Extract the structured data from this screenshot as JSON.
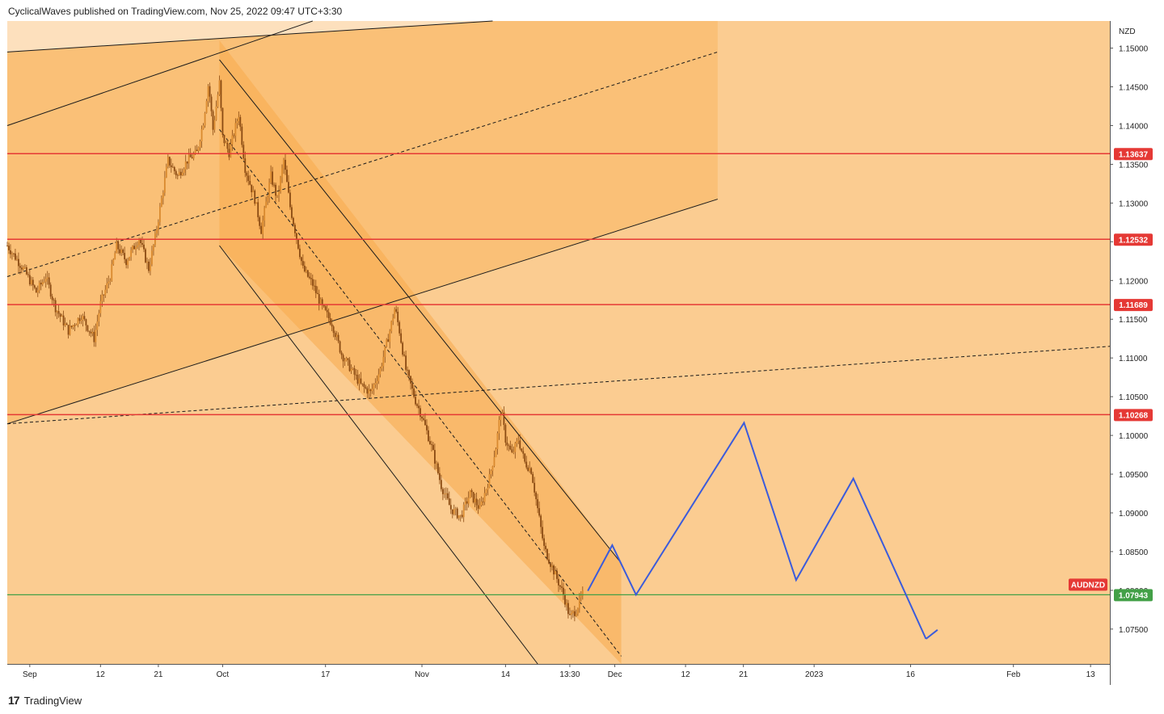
{
  "header": {
    "published_line": "CyclicalWaves published on TradingView.com, Nov 25, 2022 09:47 UTC+3:30"
  },
  "footer": {
    "logo_glyph": "17",
    "brand": "TradingView"
  },
  "colors": {
    "background_fill": "#fbcc91",
    "channel_fill": "#f9b663",
    "horizontal_level": "#e53935",
    "current_price": "#43a047",
    "projection": "#3b5bdb",
    "candle": "#8a4a12"
  },
  "chart_data": {
    "type": "line",
    "symbol": "AUDNZD",
    "currency": "NZD",
    "y_ticks": [
      "1.15000",
      "1.14500",
      "1.14000",
      "1.13500",
      "1.13000",
      "1.12500",
      "1.12000",
      "1.11500",
      "1.11000",
      "1.10500",
      "1.10000",
      "1.09500",
      "1.09000",
      "1.08500",
      "1.08000",
      "1.07500"
    ],
    "y_tick_values": [
      1.15,
      1.145,
      1.14,
      1.135,
      1.13,
      1.125,
      1.12,
      1.115,
      1.11,
      1.105,
      1.1,
      1.095,
      1.09,
      1.085,
      1.08,
      1.075
    ],
    "ylim": [
      1.0705,
      1.1535
    ],
    "x_ticks": [
      {
        "label": "Sep",
        "day": 0
      },
      {
        "label": "12",
        "day": 11
      },
      {
        "label": "21",
        "day": 20
      },
      {
        "label": "Oct",
        "day": 30
      },
      {
        "label": "17",
        "day": 46
      },
      {
        "label": "Nov",
        "day": 61
      },
      {
        "label": "14",
        "day": 74
      },
      {
        "label": "13:30",
        "day": 84
      },
      {
        "label": "Dec",
        "day": 91
      },
      {
        "label": "12",
        "day": 102
      },
      {
        "label": "21",
        "day": 111
      },
      {
        "label": "2023",
        "day": 122
      },
      {
        "label": "16",
        "day": 137
      },
      {
        "label": "Feb",
        "day": 153
      },
      {
        "label": "13",
        "day": 165
      }
    ],
    "x_day_range": [
      -3.5,
      168
    ],
    "horizontal_levels": [
      {
        "value": 1.13637,
        "label": "1.13637"
      },
      {
        "value": 1.12532,
        "label": "1.12532"
      },
      {
        "value": 1.11689,
        "label": "1.11689"
      },
      {
        "value": 1.10268,
        "label": "1.10268"
      }
    ],
    "current_price": {
      "value": 1.07943,
      "label": "1.07943",
      "symbol_label": "AUDNZD"
    },
    "price_path": [
      {
        "day": -3.5,
        "price": 1.1245
      },
      {
        "day": -1,
        "price": 1.1215
      },
      {
        "day": 1,
        "price": 1.1185
      },
      {
        "day": 2.5,
        "price": 1.1205
      },
      {
        "day": 4,
        "price": 1.1165
      },
      {
        "day": 6,
        "price": 1.1135
      },
      {
        "day": 8,
        "price": 1.1155
      },
      {
        "day": 10,
        "price": 1.1125
      },
      {
        "day": 11,
        "price": 1.117
      },
      {
        "day": 12.5,
        "price": 1.1205
      },
      {
        "day": 13.5,
        "price": 1.1245
      },
      {
        "day": 15,
        "price": 1.1225
      },
      {
        "day": 17,
        "price": 1.1255
      },
      {
        "day": 18.5,
        "price": 1.1215
      },
      {
        "day": 19.5,
        "price": 1.1255
      },
      {
        "day": 20.5,
        "price": 1.1305
      },
      {
        "day": 21.5,
        "price": 1.1355
      },
      {
        "day": 23,
        "price": 1.1335
      },
      {
        "day": 24.5,
        "price": 1.1355
      },
      {
        "day": 26,
        "price": 1.1365
      },
      {
        "day": 27,
        "price": 1.1405
      },
      {
        "day": 27.8,
        "price": 1.1455
      },
      {
        "day": 28.5,
        "price": 1.1395
      },
      {
        "day": 29.5,
        "price": 1.1455
      },
      {
        "day": 30,
        "price": 1.1385
      },
      {
        "day": 31,
        "price": 1.1365
      },
      {
        "day": 32.5,
        "price": 1.1415
      },
      {
        "day": 33.5,
        "price": 1.1345
      },
      {
        "day": 35,
        "price": 1.1305
      },
      {
        "day": 36,
        "price": 1.1265
      },
      {
        "day": 37.5,
        "price": 1.1335
      },
      {
        "day": 38.5,
        "price": 1.1305
      },
      {
        "day": 39.5,
        "price": 1.1355
      },
      {
        "day": 40.5,
        "price": 1.1295
      },
      {
        "day": 41.5,
        "price": 1.1255
      },
      {
        "day": 42.5,
        "price": 1.1215
      },
      {
        "day": 44,
        "price": 1.1195
      },
      {
        "day": 45.5,
        "price": 1.1165
      },
      {
        "day": 47,
        "price": 1.1145
      },
      {
        "day": 48.5,
        "price": 1.1105
      },
      {
        "day": 50,
        "price": 1.1085
      },
      {
        "day": 51.5,
        "price": 1.1065
      },
      {
        "day": 53,
        "price": 1.1055
      },
      {
        "day": 54.5,
        "price": 1.1085
      },
      {
        "day": 56,
        "price": 1.1135
      },
      {
        "day": 56.8,
        "price": 1.1165
      },
      {
        "day": 57.5,
        "price": 1.1135
      },
      {
        "day": 58.5,
        "price": 1.1085
      },
      {
        "day": 60,
        "price": 1.1045
      },
      {
        "day": 61,
        "price": 1.1025
      },
      {
        "day": 62.5,
        "price": 1.0985
      },
      {
        "day": 64,
        "price": 1.0935
      },
      {
        "day": 65.5,
        "price": 1.0905
      },
      {
        "day": 67,
        "price": 1.0895
      },
      {
        "day": 68.5,
        "price": 1.0925
      },
      {
        "day": 70,
        "price": 1.0905
      },
      {
        "day": 71.5,
        "price": 1.0945
      },
      {
        "day": 72.5,
        "price": 1.0985
      },
      {
        "day": 73.3,
        "price": 1.1035
      },
      {
        "day": 74,
        "price": 1.0995
      },
      {
        "day": 75,
        "price": 1.0975
      },
      {
        "day": 76,
        "price": 1.0995
      },
      {
        "day": 77,
        "price": 1.0965
      },
      {
        "day": 78,
        "price": 1.0955
      },
      {
        "day": 79,
        "price": 1.0905
      },
      {
        "day": 80,
        "price": 1.0855
      },
      {
        "day": 81,
        "price": 1.0835
      },
      {
        "day": 82,
        "price": 1.0815
      },
      {
        "day": 83,
        "price": 1.0795
      },
      {
        "day": 84,
        "price": 1.0765
      },
      {
        "day": 85,
        "price": 1.0775
      },
      {
        "day": 86,
        "price": 1.0795
      }
    ],
    "projection_path": [
      {
        "day": 86.8,
        "price": 1.07993
      },
      {
        "day": 90.6,
        "price": 1.08583
      },
      {
        "day": 94.3,
        "price": 1.07943
      },
      {
        "day": 111.1,
        "price": 1.10163
      },
      {
        "day": 119.2,
        "price": 1.08133
      },
      {
        "day": 128.1,
        "price": 1.09443
      },
      {
        "day": 139.4,
        "price": 1.07373
      }
    ],
    "projection_arrowhead": {
      "day": 141.2,
      "price": 1.0749
    },
    "rising_channel": {
      "upper": [
        {
          "day": -3.5,
          "price": 1.14
        },
        {
          "day": 44,
          "price": 1.1535
        }
      ],
      "mid": [
        {
          "day": -3.5,
          "price": 1.1205
        },
        {
          "day": 107,
          "price": 1.1495
        }
      ],
      "lower": [
        {
          "day": -3.5,
          "price": 1.1015
        },
        {
          "day": 107,
          "price": 1.1305
        }
      ],
      "zone_end_day": 107
    },
    "falling_channel": {
      "upper": [
        {
          "day": 29.5,
          "price": 1.1485
        },
        {
          "day": 92,
          "price": 1.0835
        }
      ],
      "mid": [
        {
          "day": 29.5,
          "price": 1.1395
        },
        {
          "day": 92,
          "price": 1.0715
        }
      ],
      "lower": [
        {
          "day": 29.5,
          "price": 1.1245
        },
        {
          "day": 79,
          "price": 1.0705
        }
      ],
      "zone_start_day": 29.5,
      "zone_end_day": 92
    },
    "long_dashed_line": [
      {
        "day": -3.5,
        "price": 1.1015
      },
      {
        "day": 168,
        "price": 1.1115
      }
    ],
    "outer_top_line": [
      {
        "day": -3.5,
        "price": 1.1495
      },
      {
        "day": 72,
        "price": 1.1535
      }
    ]
  }
}
